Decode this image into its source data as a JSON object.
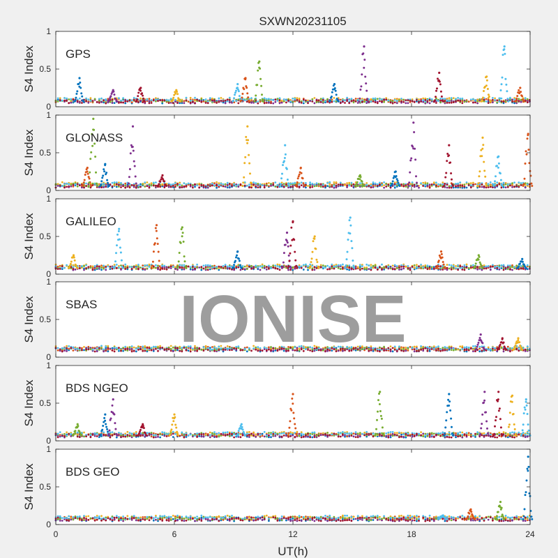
{
  "figure": {
    "title": "SXWN20231105",
    "xlabel": "UT(h)",
    "watermark": "IONISE"
  },
  "chart_data": [
    {
      "type": "scatter",
      "panel_label": "GPS",
      "ylabel": "S4 Index",
      "xlim": [
        0,
        24
      ],
      "ylim": [
        0,
        1
      ],
      "xticks": [
        0,
        6,
        12,
        18,
        24
      ],
      "yticks": [
        0,
        0.5,
        1
      ],
      "ytick_labels": [
        "0",
        "0.5",
        "1"
      ],
      "baseline": 0.07,
      "spikes": [
        [
          1.2,
          0.38
        ],
        [
          2.9,
          0.22
        ],
        [
          4.3,
          0.25
        ],
        [
          6.1,
          0.22
        ],
        [
          9.2,
          0.3
        ],
        [
          9.6,
          0.38
        ],
        [
          10.3,
          0.6
        ],
        [
          14.1,
          0.3
        ],
        [
          15.6,
          0.8
        ],
        [
          19.4,
          0.45
        ],
        [
          21.8,
          0.4
        ],
        [
          22.7,
          0.8
        ],
        [
          23.5,
          0.25
        ]
      ]
    },
    {
      "type": "scatter",
      "panel_label": "GLONASS",
      "ylabel": "S4 Index",
      "xlim": [
        0,
        24
      ],
      "ylim": [
        0,
        1
      ],
      "xticks": [
        0,
        6,
        12,
        18,
        24
      ],
      "yticks": [
        0,
        0.5,
        1
      ],
      "ytick_labels": [
        "0",
        "0.5",
        "1"
      ],
      "baseline": 0.06,
      "spikes": [
        [
          1.6,
          0.3
        ],
        [
          1.9,
          0.95
        ],
        [
          2.5,
          0.35
        ],
        [
          3.9,
          0.85
        ],
        [
          5.4,
          0.2
        ],
        [
          9.7,
          0.85
        ],
        [
          11.6,
          0.6
        ],
        [
          12.4,
          0.3
        ],
        [
          15.4,
          0.2
        ],
        [
          17.2,
          0.25
        ],
        [
          18.1,
          0.9
        ],
        [
          19.9,
          0.6
        ],
        [
          21.6,
          0.7
        ],
        [
          22.4,
          0.45
        ],
        [
          23.9,
          0.75
        ]
      ]
    },
    {
      "type": "scatter",
      "panel_label": "GALILEO",
      "ylabel": "S4 Index",
      "xlim": [
        0,
        24
      ],
      "ylim": [
        0,
        1
      ],
      "xticks": [
        0,
        6,
        12,
        18,
        24
      ],
      "yticks": [
        0,
        0.5,
        1
      ],
      "ytick_labels": [
        "0",
        "0.5",
        "1"
      ],
      "baseline": 0.08,
      "spikes": [
        [
          0.9,
          0.25
        ],
        [
          3.2,
          0.6
        ],
        [
          5.1,
          0.65
        ],
        [
          6.4,
          0.62
        ],
        [
          9.2,
          0.3
        ],
        [
          11.7,
          0.55
        ],
        [
          12.0,
          0.7
        ],
        [
          13.1,
          0.5
        ],
        [
          14.9,
          0.75
        ],
        [
          19.5,
          0.3
        ],
        [
          21.4,
          0.25
        ],
        [
          23.6,
          0.2
        ]
      ]
    },
    {
      "type": "scatter",
      "panel_label": "SBAS",
      "ylabel": "S4 Index",
      "xlim": [
        0,
        24
      ],
      "ylim": [
        0,
        1
      ],
      "xticks": [
        0,
        6,
        12,
        18,
        24
      ],
      "yticks": [
        0,
        0.5,
        1
      ],
      "ytick_labels": [
        "0",
        "0.5",
        "1"
      ],
      "baseline": 0.1,
      "spikes": [
        [
          21.5,
          0.3
        ],
        [
          22.6,
          0.25
        ],
        [
          23.4,
          0.25
        ]
      ]
    },
    {
      "type": "scatter",
      "panel_label": "BDS NGEO",
      "ylabel": "S4 Index",
      "xlim": [
        0,
        24
      ],
      "ylim": [
        0,
        1
      ],
      "xticks": [
        0,
        6,
        12,
        18,
        24
      ],
      "yticks": [
        0,
        0.5,
        1
      ],
      "ytick_labels": [
        "0",
        "0.5",
        "1"
      ],
      "baseline": 0.07,
      "spikes": [
        [
          1.1,
          0.22
        ],
        [
          2.5,
          0.35
        ],
        [
          2.9,
          0.55
        ],
        [
          4.4,
          0.22
        ],
        [
          6.0,
          0.35
        ],
        [
          9.4,
          0.22
        ],
        [
          12.0,
          0.62
        ],
        [
          16.4,
          0.65
        ],
        [
          19.9,
          0.62
        ],
        [
          21.7,
          0.65
        ],
        [
          22.4,
          0.65
        ],
        [
          23.1,
          0.6
        ],
        [
          23.8,
          0.55
        ]
      ]
    },
    {
      "type": "scatter",
      "panel_label": "BDS GEO",
      "ylabel": "S4 Index",
      "xlim": [
        0,
        24
      ],
      "ylim": [
        0,
        1
      ],
      "xticks": [
        0,
        6,
        12,
        18,
        24
      ],
      "xtick_labels": [
        "0",
        "6",
        "12",
        "18",
        "24"
      ],
      "yticks": [
        0,
        0.5,
        1
      ],
      "ytick_labels": [
        "0",
        "0.5",
        "1"
      ],
      "baseline": 0.07,
      "spikes": [
        [
          19.6,
          0.12
        ],
        [
          21.0,
          0.2
        ],
        [
          22.5,
          0.3
        ],
        [
          23.9,
          0.9
        ]
      ]
    }
  ],
  "colors": {
    "background": "#f0f0f0",
    "axes_face": "#ffffff",
    "axes_edge": "#262626",
    "watermark": "#c8c8c8",
    "series": [
      "#0072bd",
      "#d95319",
      "#edb120",
      "#7e2f8e",
      "#77ac30",
      "#4dbeee",
      "#a2142f"
    ]
  }
}
